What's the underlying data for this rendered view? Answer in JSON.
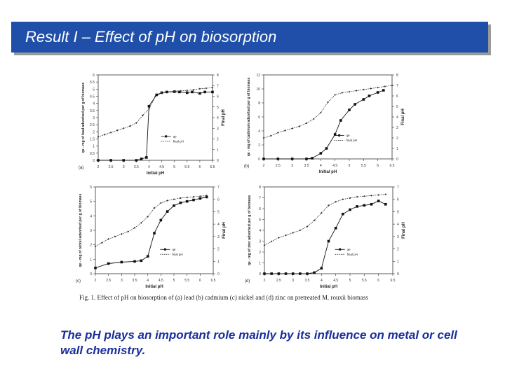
{
  "slide": {
    "title": "Result I – Effect of pH on biosorption",
    "caption": "Fig. 1.  Effect of pH on biosorption of (a) lead (b) cadmium (c) nickel and (d) zinc on pretreated M. rouxii biomass",
    "note": "The pH plays an important role mainly by its influence on metal or cell wall chemistry."
  },
  "colors": {
    "title_bar": "#1f4fa8",
    "note_text": "#1a2f9a"
  },
  "chart_data": [
    {
      "type": "line",
      "panel": "(a)",
      "xlabel": "Initial pH",
      "ylabel": "qe - mg of lead adsorbed per g of biomass",
      "y2label": "Final pH",
      "xlim": [
        2,
        6.5
      ],
      "xticks": [
        "2",
        "2.5",
        "3",
        "3.5",
        "4",
        "4.5",
        "5",
        "5.5",
        "6",
        "6.5"
      ],
      "ylim": [
        0,
        6
      ],
      "yticks": [
        "0",
        "0.5",
        "1",
        "1.5",
        "2",
        "2.5",
        "3",
        "3.5",
        "4",
        "4.5",
        "5",
        "5.5",
        "6"
      ],
      "y2lim": [
        0,
        8
      ],
      "y2ticks": [
        "0",
        "1",
        "2",
        "3",
        "4",
        "5",
        "6",
        "7",
        "8"
      ],
      "legend": [
        "qe",
        "final pH"
      ],
      "series": [
        {
          "name": "qe",
          "axis": "left",
          "marker": "square",
          "x": [
            2.0,
            2.5,
            3.0,
            3.5,
            3.7,
            3.9,
            4.0,
            4.3,
            4.5,
            4.7,
            5.0,
            5.2,
            5.5,
            5.7,
            6.0,
            6.2,
            6.5
          ],
          "y": [
            0,
            0,
            0,
            0,
            0.1,
            0.2,
            3.8,
            4.6,
            4.75,
            4.8,
            4.82,
            4.8,
            4.75,
            4.8,
            4.7,
            4.8,
            4.8
          ]
        },
        {
          "name": "final pH",
          "axis": "right",
          "marker": "diamond",
          "x": [
            2.0,
            2.25,
            2.5,
            2.75,
            3.0,
            3.25,
            3.5,
            3.75,
            4.0,
            4.25,
            4.5,
            4.75,
            5.0,
            5.25,
            5.5,
            5.75,
            6.0,
            6.25,
            6.5
          ],
          "y": [
            2.2,
            2.4,
            2.6,
            2.8,
            3.0,
            3.2,
            3.5,
            4.2,
            4.8,
            6.0,
            6.3,
            6.4,
            6.5,
            6.5,
            6.55,
            6.6,
            6.7,
            6.75,
            6.8
          ]
        }
      ]
    },
    {
      "type": "line",
      "panel": "(b)",
      "xlabel": "Initial pH",
      "ylabel": "qe - mg of cadmium adsorbed per g of biomass",
      "y2label": "Final pH",
      "xlim": [
        2,
        6.5
      ],
      "xticks": [
        "2",
        "2.5",
        "3",
        "3.5",
        "4",
        "4.5",
        "5",
        "5.5",
        "6",
        "6.5"
      ],
      "ylim": [
        0,
        12
      ],
      "yticks": [
        "0",
        "2",
        "4",
        "6",
        "8",
        "10",
        "12"
      ],
      "y2lim": [
        0,
        8
      ],
      "y2ticks": [
        "0",
        "1",
        "2",
        "3",
        "4",
        "5",
        "6",
        "7",
        "8"
      ],
      "legend": [
        "qe",
        "final pH"
      ],
      "series": [
        {
          "name": "qe",
          "axis": "left",
          "marker": "square",
          "x": [
            2.0,
            2.5,
            3.0,
            3.5,
            3.7,
            4.0,
            4.2,
            4.5,
            4.7,
            5.0,
            5.2,
            5.5,
            5.7,
            6.0,
            6.2
          ],
          "y": [
            0,
            0,
            0,
            0,
            0.1,
            0.8,
            1.5,
            3.5,
            5.5,
            7.0,
            7.8,
            8.5,
            9.0,
            9.5,
            9.8
          ]
        },
        {
          "name": "final pH",
          "axis": "right",
          "marker": "diamond",
          "x": [
            2.0,
            2.25,
            2.5,
            2.75,
            3.0,
            3.25,
            3.5,
            3.75,
            4.0,
            4.25,
            4.5,
            4.75,
            5.0,
            5.25,
            5.5,
            5.75,
            6.0,
            6.25,
            6.5
          ],
          "y": [
            2.0,
            2.2,
            2.5,
            2.7,
            2.9,
            3.1,
            3.4,
            3.8,
            4.4,
            5.4,
            6.1,
            6.3,
            6.4,
            6.5,
            6.6,
            6.7,
            6.8,
            6.9,
            7.0
          ]
        }
      ]
    },
    {
      "type": "line",
      "panel": "(c)",
      "xlabel": "Initial pH",
      "ylabel": "qe - mg of nickel adsorbed per g of biomass",
      "y2label": "Final pH",
      "xlim": [
        2,
        6.5
      ],
      "xticks": [
        "2",
        "2.5",
        "3",
        "3.5",
        "4",
        "4.5",
        "5",
        "5.5",
        "6",
        "6.5"
      ],
      "ylim": [
        0,
        6
      ],
      "yticks": [
        "0",
        "1",
        "2",
        "3",
        "4",
        "5",
        "6"
      ],
      "y2lim": [
        0,
        7
      ],
      "y2ticks": [
        "0",
        "1",
        "2",
        "3",
        "4",
        "5",
        "6",
        "7"
      ],
      "legend": [
        "qe",
        "final pH"
      ],
      "series": [
        {
          "name": "qe",
          "axis": "left",
          "marker": "square",
          "x": [
            2.0,
            2.5,
            3.0,
            3.5,
            3.75,
            4.0,
            4.25,
            4.5,
            4.75,
            5.0,
            5.25,
            5.5,
            5.75,
            6.0,
            6.25
          ],
          "y": [
            0.4,
            0.7,
            0.8,
            0.85,
            0.9,
            1.2,
            2.8,
            3.7,
            4.3,
            4.7,
            4.9,
            5.0,
            5.1,
            5.2,
            5.3
          ]
        },
        {
          "name": "final pH",
          "axis": "right",
          "marker": "diamond",
          "x": [
            2.0,
            2.25,
            2.5,
            2.75,
            3.0,
            3.25,
            3.5,
            3.75,
            4.0,
            4.25,
            4.5,
            4.75,
            5.0,
            5.25,
            5.5,
            5.75,
            6.0,
            6.25
          ],
          "y": [
            2.2,
            2.5,
            2.8,
            3.0,
            3.2,
            3.4,
            3.7,
            4.1,
            4.6,
            5.3,
            5.7,
            5.9,
            6.0,
            6.1,
            6.15,
            6.2,
            6.25,
            6.3
          ]
        }
      ]
    },
    {
      "type": "line",
      "panel": "(d)",
      "xlabel": "Initial pH",
      "ylabel": "qe - mg of zinc adsorbed per g of biomass",
      "y2label": "Final pH",
      "xlim": [
        2,
        6.5
      ],
      "xticks": [
        "2",
        "2.5",
        "3",
        "3.5",
        "4",
        "4.5",
        "5",
        "5.5",
        "6",
        "6.5"
      ],
      "ylim": [
        0,
        8
      ],
      "yticks": [
        "0",
        "1",
        "2",
        "3",
        "4",
        "5",
        "6",
        "7",
        "8"
      ],
      "y2lim": [
        0,
        7
      ],
      "y2ticks": [
        "0",
        "1",
        "2",
        "3",
        "4",
        "5",
        "6",
        "7"
      ],
      "legend": [
        "qe",
        "final pH"
      ],
      "series": [
        {
          "name": "qe",
          "axis": "left",
          "marker": "square",
          "x": [
            2.0,
            2.25,
            2.5,
            2.75,
            3.0,
            3.25,
            3.5,
            3.75,
            4.0,
            4.25,
            4.5,
            4.75,
            5.0,
            5.25,
            5.5,
            5.75,
            6.0,
            6.25
          ],
          "y": [
            0,
            0,
            0,
            0,
            0,
            0,
            0,
            0.1,
            0.5,
            3.0,
            4.2,
            5.5,
            5.9,
            6.2,
            6.3,
            6.4,
            6.7,
            6.4
          ]
        },
        {
          "name": "final pH",
          "axis": "right",
          "marker": "diamond",
          "x": [
            2.0,
            2.25,
            2.5,
            2.75,
            3.0,
            3.25,
            3.5,
            3.75,
            4.0,
            4.25,
            4.5,
            4.75,
            5.0,
            5.25,
            5.5,
            5.75,
            6.0,
            6.25
          ],
          "y": [
            2.3,
            2.6,
            2.9,
            3.1,
            3.3,
            3.5,
            3.8,
            4.3,
            4.9,
            5.5,
            5.8,
            6.0,
            6.1,
            6.2,
            6.25,
            6.3,
            6.35,
            6.4
          ]
        }
      ]
    }
  ]
}
